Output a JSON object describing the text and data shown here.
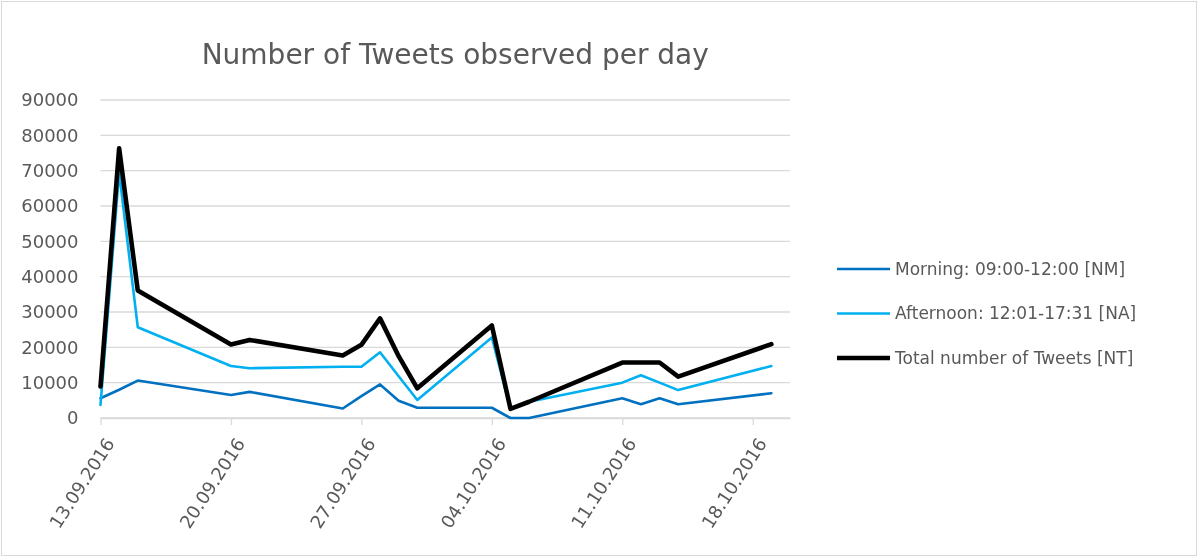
{
  "chart_data": {
    "type": "line",
    "title": "Number of Tweets observed per day",
    "x": [
      "2016-09-13",
      "2016-09-14",
      "2016-09-15",
      "2016-09-20",
      "2016-09-21",
      "2016-09-26",
      "2016-09-27",
      "2016-09-28",
      "2016-09-29",
      "2016-09-30",
      "2016-10-04",
      "2016-10-05",
      "2016-10-06",
      "2016-10-11",
      "2016-10-12",
      "2016-10-13",
      "2016-10-14",
      "2016-10-19"
    ],
    "xlim": [
      "2016-09-13",
      "2016-10-20"
    ],
    "xticks": [
      {
        "value": "2016-09-13",
        "label": "13.09.2016"
      },
      {
        "value": "2016-09-20",
        "label": "20.09.2016"
      },
      {
        "value": "2016-09-27",
        "label": "27.09.2016"
      },
      {
        "value": "2016-10-04",
        "label": "04.10.2016"
      },
      {
        "value": "2016-10-11",
        "label": "11.10.2016"
      },
      {
        "value": "2016-10-18",
        "label": "18.10.2016"
      }
    ],
    "ylim": [
      0,
      90000
    ],
    "yticks": [
      0,
      10000,
      20000,
      30000,
      40000,
      50000,
      60000,
      70000,
      80000,
      90000
    ],
    "grid": "y",
    "legend": "right",
    "series": [
      {
        "name": "Morning: 09:00-12:00 [NM]",
        "color": "#0070c0",
        "values": [
          5600,
          8000,
          10600,
          6500,
          7400,
          2700,
          6200,
          9500,
          4900,
          2900,
          2900,
          0,
          0,
          5600,
          3900,
          5600,
          3900,
          7000
        ]
      },
      {
        "name": "Afternoon: 12:01-17:31 [NA]",
        "color": "#00b0f0",
        "values": [
          3700,
          69500,
          25700,
          14700,
          14100,
          14500,
          14500,
          18600,
          11800,
          5100,
          22800,
          2500,
          4600,
          10000,
          12100,
          10000,
          7900,
          14700
        ]
      },
      {
        "name": "Total number of Tweets [NT]",
        "color": "#000000",
        "values": [
          8900,
          76300,
          36100,
          20800,
          22100,
          17700,
          20700,
          28200,
          17500,
          8400,
          26200,
          2600,
          4600,
          15700,
          15700,
          15700,
          11700,
          20900
        ]
      }
    ]
  }
}
